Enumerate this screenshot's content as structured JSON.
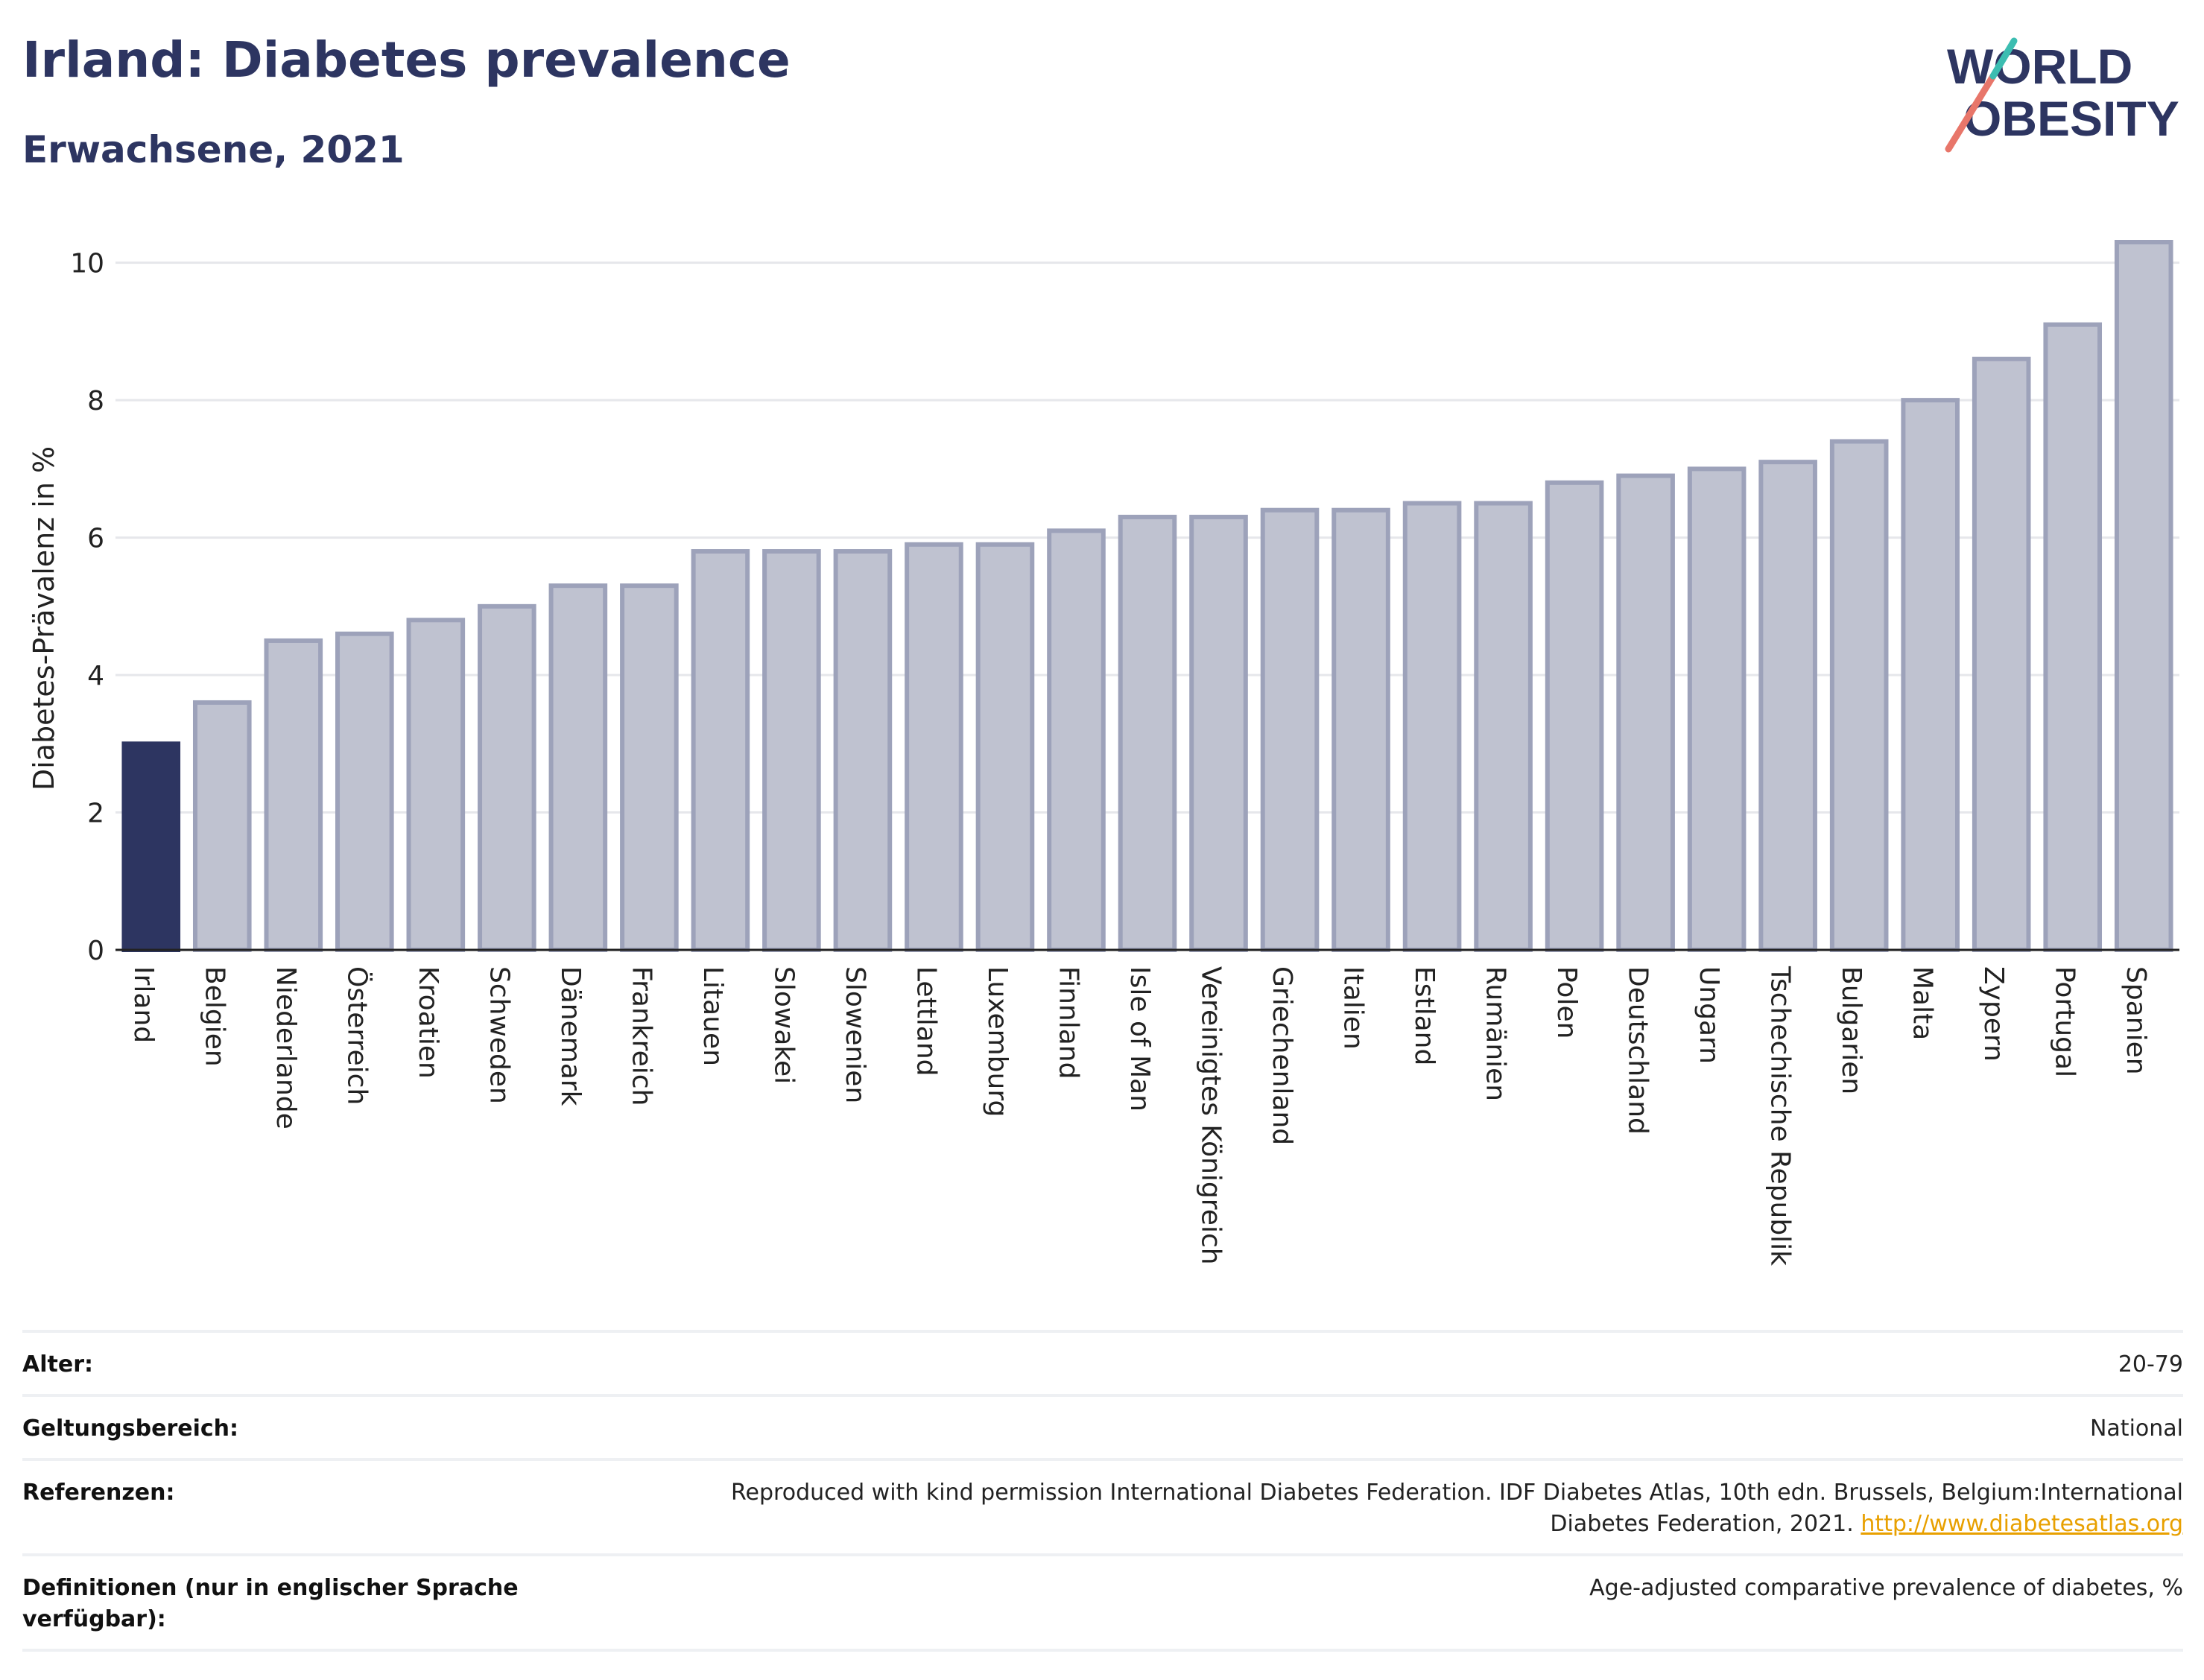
{
  "title": "Irland: Diabetes prevalence",
  "subtitle": "Erwachsene, 2021",
  "logo": {
    "line1": "WORLD",
    "line2": "OBESITY"
  },
  "colors": {
    "highlight": "#2d3561",
    "bar": "#bfc2d0",
    "bar_border": "#9da2ba",
    "title": "#2d3561",
    "link": "#e8a000"
  },
  "chart_data": {
    "type": "bar",
    "ylabel": "Diabetes-Prävalenz in %",
    "xlabel": "",
    "ylim": [
      0,
      10.3
    ],
    "yticks": [
      0,
      2,
      4,
      6,
      8,
      10
    ],
    "grid": true,
    "highlight_category": "Irland",
    "categories": [
      "Irland",
      "Belgien",
      "Niederlande",
      "Österreich",
      "Kroatien",
      "Schweden",
      "Dänemark",
      "Frankreich",
      "Litauen",
      "Slowakei",
      "Slowenien",
      "Lettland",
      "Luxemburg",
      "Finnland",
      "Isle of Man",
      "Vereinigtes Königreich",
      "Griechenland",
      "Italien",
      "Estland",
      "Rumänien",
      "Polen",
      "Deutschland",
      "Ungarn",
      "Tschechische Republik",
      "Bulgarien",
      "Malta",
      "Zypern",
      "Portugal",
      "Spanien"
    ],
    "values": [
      3.0,
      3.6,
      4.5,
      4.6,
      4.8,
      5.0,
      5.3,
      5.3,
      5.8,
      5.8,
      5.8,
      5.9,
      5.9,
      6.1,
      6.3,
      6.3,
      6.4,
      6.4,
      6.5,
      6.5,
      6.8,
      6.9,
      7.0,
      7.1,
      7.4,
      8.0,
      8.6,
      9.1,
      10.3
    ]
  },
  "meta": {
    "age_label": "Alter:",
    "age_value": "20-79",
    "scope_label": "Geltungsbereich:",
    "scope_value": "National",
    "ref_label": "Referenzen:",
    "ref_value": "Reproduced with kind permission International Diabetes Federation.  IDF Diabetes Atlas, 10th edn. Brussels, Belgium:International Diabetes Federation, 2021. ",
    "ref_link": "http://www.diabetesatlas.org",
    "def_label": "Definitionen (nur in englischer Sprache verfügbar):",
    "def_value": "Age-adjusted comparative prevalence of diabetes, %"
  }
}
